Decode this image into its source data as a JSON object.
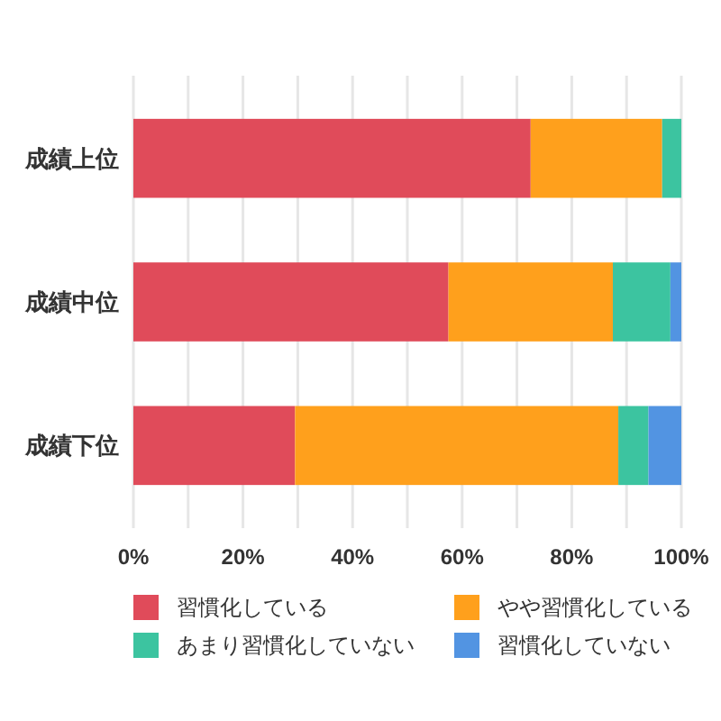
{
  "chart_data": {
    "type": "bar",
    "orientation": "horizontal",
    "stacked": true,
    "categories": [
      "成績上位",
      "成績中位",
      "成績下位"
    ],
    "series": [
      {
        "name": "習慣化している",
        "color": "#e04b5a",
        "values": [
          72.5,
          57.5,
          29.5
        ]
      },
      {
        "name": "やや習慣化している",
        "color": "#ffa01c",
        "values": [
          24,
          30,
          59
        ]
      },
      {
        "name": "あまり習慣化していない",
        "color": "#3cc4a0",
        "values": [
          3.5,
          10.5,
          5.5
        ]
      },
      {
        "name": "習慣化していない",
        "color": "#5294e2",
        "values": [
          0,
          2,
          6
        ]
      }
    ],
    "xlim": [
      0,
      100
    ],
    "xticks": [
      {
        "value": 0,
        "label": "0%"
      },
      {
        "value": 10,
        "label": null
      },
      {
        "value": 20,
        "label": "20%"
      },
      {
        "value": 30,
        "label": null
      },
      {
        "value": 40,
        "label": "40%"
      },
      {
        "value": 50,
        "label": null
      },
      {
        "value": 60,
        "label": "60%"
      },
      {
        "value": 70,
        "label": null
      },
      {
        "value": 80,
        "label": "80%"
      },
      {
        "value": 90,
        "label": null
      },
      {
        "value": 100,
        "label": "100%"
      }
    ],
    "grid": "x",
    "legend": "bottom"
  }
}
